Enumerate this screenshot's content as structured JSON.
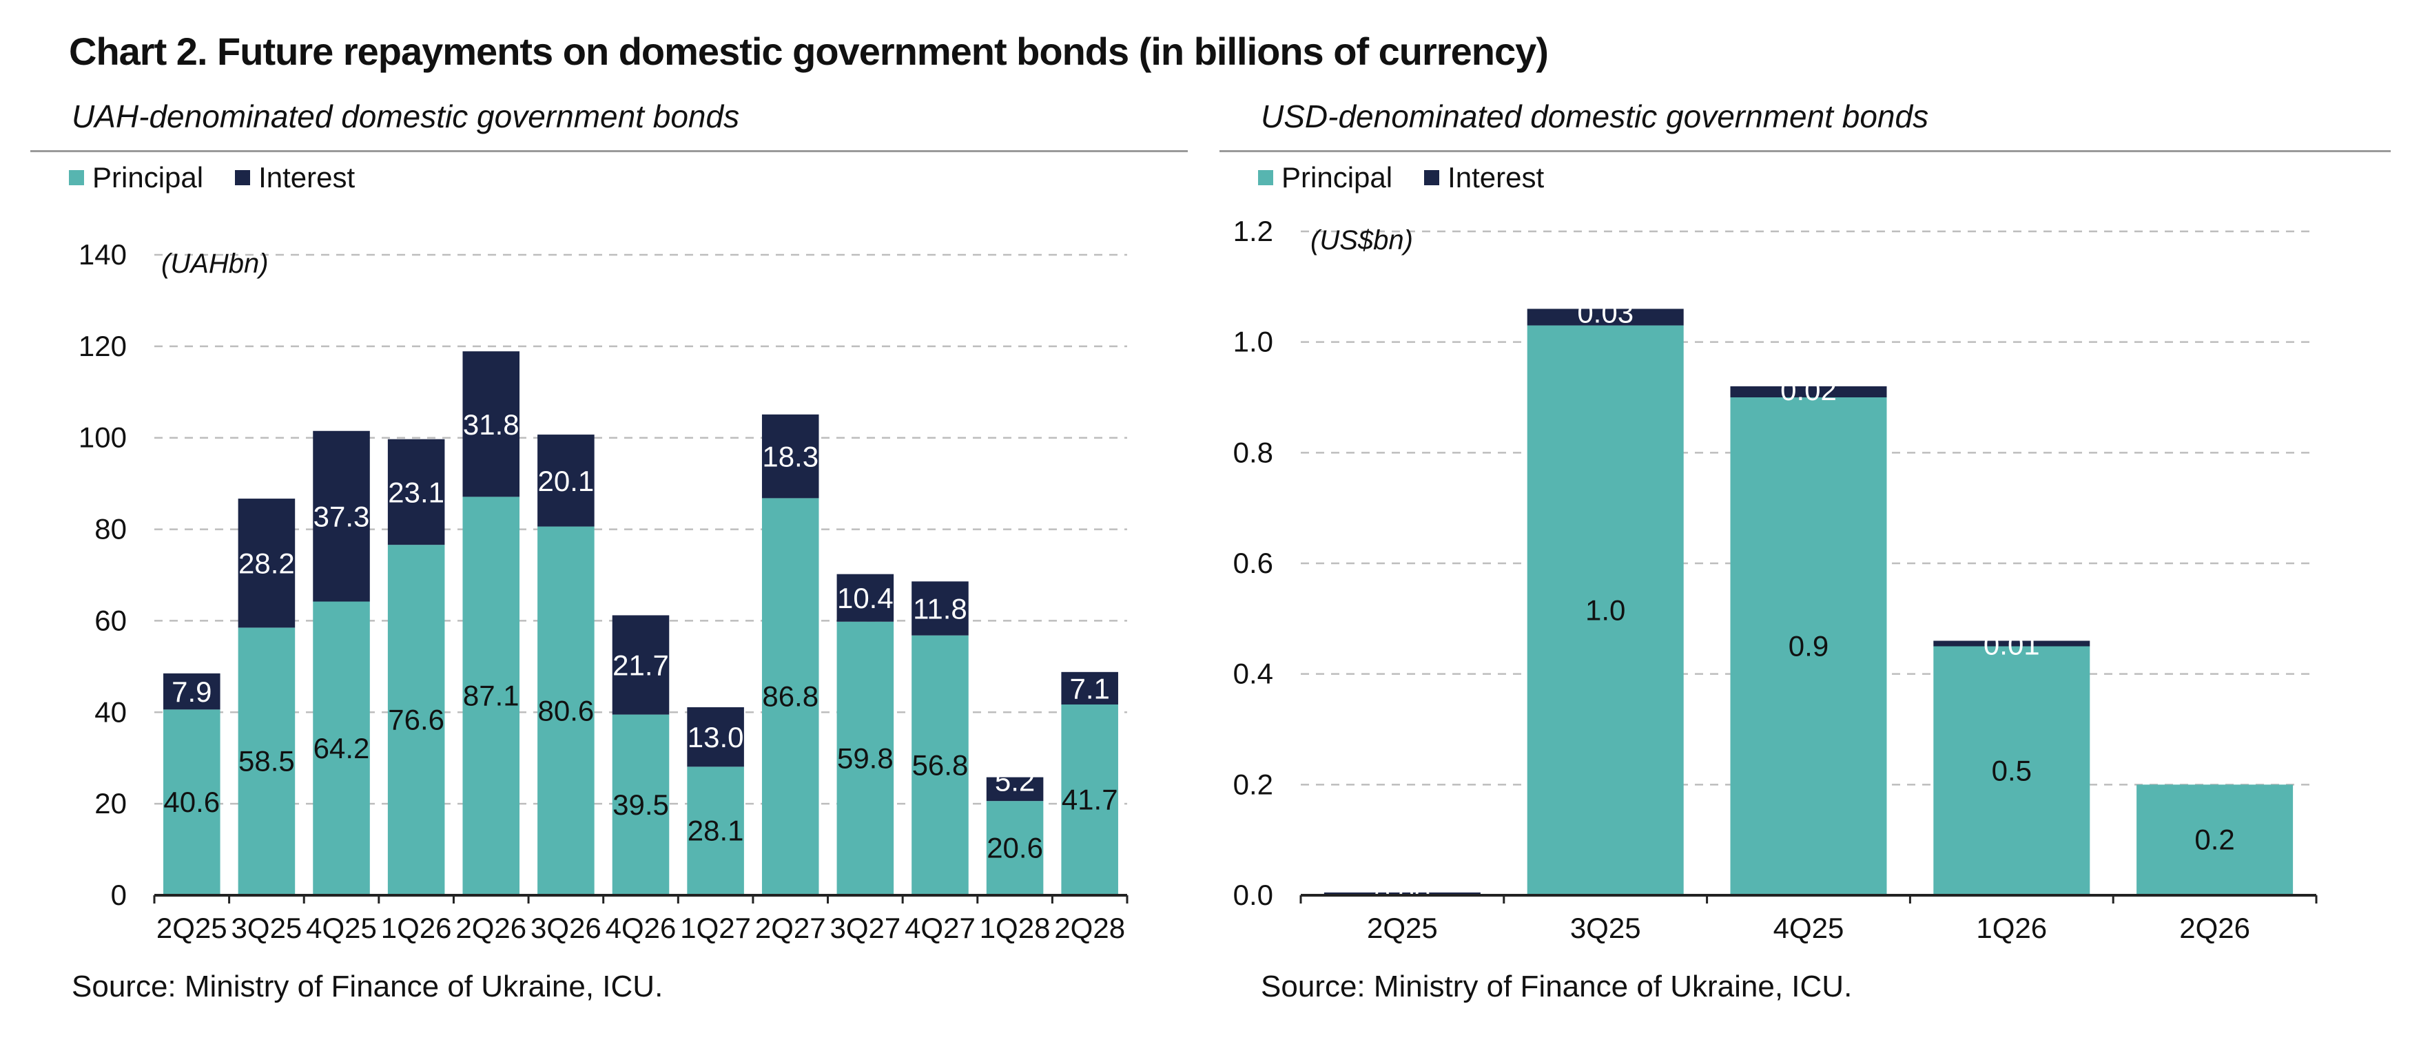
{
  "title": "Chart 2. Future repayments on domestic government bonds (in billions of currency)",
  "colors": {
    "principal": "#57b5b0",
    "interest": "#1b2547",
    "grid": "#bdbdbd",
    "axis": "#222222"
  },
  "chart_data": [
    {
      "type": "bar",
      "stacked": true,
      "subtitle": "UAH-denominated domestic government bonds",
      "unit_label": "(UAHbn)",
      "categories": [
        "2Q25",
        "3Q25",
        "4Q25",
        "1Q26",
        "2Q26",
        "3Q26",
        "4Q26",
        "1Q27",
        "2Q27",
        "3Q27",
        "4Q27",
        "1Q28",
        "2Q28"
      ],
      "series": [
        {
          "name": "Principal",
          "values": [
            40.6,
            58.5,
            64.2,
            76.6,
            87.1,
            80.6,
            39.5,
            28.1,
            86.8,
            59.8,
            56.8,
            20.6,
            41.7
          ]
        },
        {
          "name": "Interest",
          "values": [
            7.9,
            28.2,
            37.3,
            23.1,
            31.8,
            20.1,
            21.7,
            13.0,
            18.3,
            10.4,
            11.8,
            5.2,
            7.1
          ]
        }
      ],
      "data_labels": {
        "principal": [
          "40.6",
          "58.5",
          "64.2",
          "76.6",
          "87.1",
          "80.6",
          "39.5",
          "28.1",
          "86.8",
          "59.8",
          "56.8",
          "20.6",
          "41.7"
        ],
        "interest": [
          "7.9",
          "28.2",
          "37.3",
          "23.1",
          "31.8",
          "20.1",
          "21.7",
          "13.0",
          "18.3",
          "10.4",
          "11.8",
          "5.2",
          "7.1"
        ]
      },
      "ylim": [
        0,
        140
      ],
      "yticks": [
        "0",
        "20",
        "40",
        "60",
        "80",
        "100",
        "120",
        "140"
      ],
      "grid": true,
      "legend_position": "top-left",
      "source": "Source: Ministry of Finance of Ukraine, ICU."
    },
    {
      "type": "bar",
      "stacked": true,
      "subtitle": "USD-denominated domestic government bonds",
      "unit_label": "(US$bn)",
      "categories": [
        "2Q25",
        "3Q25",
        "4Q25",
        "1Q26",
        "2Q26"
      ],
      "series": [
        {
          "name": "Principal",
          "values": [
            0.0,
            1.03,
            0.9,
            0.45,
            0.2
          ]
        },
        {
          "name": "Interest",
          "values": [
            0.005,
            0.03,
            0.02,
            0.01,
            0.0
          ]
        }
      ],
      "data_labels": {
        "principal": [
          "",
          "1.0",
          "0.9",
          "0.5",
          "0.2"
        ],
        "interest": [
          "0.00",
          "0.03",
          "0.02",
          "0.01",
          ""
        ]
      },
      "ylim": [
        0,
        1.2
      ],
      "yticks": [
        "0.0",
        "0.2",
        "0.4",
        "0.6",
        "0.8",
        "1.0",
        "1.2"
      ],
      "grid": true,
      "legend_position": "top-left",
      "source": "Source: Ministry of Finance of Ukraine, ICU."
    }
  ]
}
